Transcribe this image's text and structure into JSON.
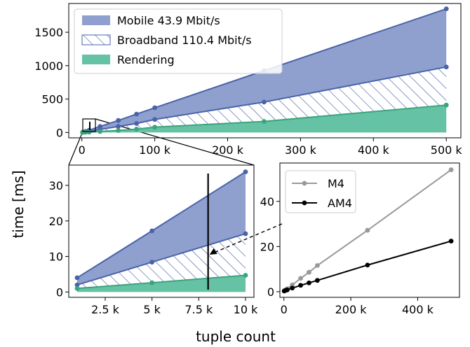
{
  "labels": {
    "ylabel": "time [ms]",
    "xlabel": "tuple count"
  },
  "colors": {
    "mobile": "#8fa0cf",
    "mobile_line": "#4a63a8",
    "broadband_hatch": "#4a63a8",
    "rendering": "#66c2a5",
    "rendering_line": "#3aa57a",
    "m4": "#999999",
    "am4": "#000000"
  },
  "chart_data": [
    {
      "type": "area",
      "panel": "main",
      "x": [
        1000,
        5000,
        10000,
        25000,
        50000,
        75000,
        100000,
        250000,
        500000
      ],
      "series": [
        {
          "name": "Mobile 43.9 Mbit/s",
          "style": "filled",
          "values": [
            4,
            17,
            34,
            90,
            180,
            275,
            370,
            925,
            1850
          ]
        },
        {
          "name": "Broadband 110.4 Mbit/s",
          "style": "hatched",
          "values": [
            2,
            8,
            16,
            45,
            90,
            135,
            195,
            455,
            980
          ]
        },
        {
          "name": "Rendering",
          "style": "filled",
          "values": [
            1,
            3,
            5,
            15,
            30,
            50,
            80,
            165,
            410
          ]
        }
      ],
      "xticks": [
        0,
        100000,
        200000,
        300000,
        400000,
        500000
      ],
      "xtick_labels": [
        "0",
        "100 k",
        "200 k",
        "300 k",
        "400 k",
        "500 k"
      ],
      "yticks": [
        0,
        500,
        1000,
        1500
      ],
      "ytick_labels": [
        "0",
        "500",
        "1000",
        "1500"
      ],
      "xlim": [
        -18000,
        520000
      ],
      "ylim": [
        -80,
        1930
      ],
      "legend_position": "top-left"
    },
    {
      "type": "area",
      "panel": "zoom-inset",
      "x": [
        1000,
        5000,
        10000
      ],
      "series": [
        {
          "name": "Mobile 43.9 Mbit/s",
          "values": [
            4,
            17.2,
            33.8
          ]
        },
        {
          "name": "Broadband 110.4 Mbit/s",
          "values": [
            2,
            8.4,
            16.4
          ]
        },
        {
          "name": "Rendering",
          "values": [
            1,
            2.6,
            4.7
          ]
        }
      ],
      "marker_x": 8000,
      "xticks": [
        2500,
        5000,
        7500,
        10000
      ],
      "xtick_labels": [
        "2.5 k",
        "5 k",
        "7.5 k",
        "10 k"
      ],
      "yticks": [
        0,
        10,
        20,
        30
      ],
      "ytick_labels": [
        "0",
        "10",
        "20",
        "30"
      ],
      "xlim": [
        550,
        10450
      ],
      "ylim": [
        -1.5,
        35.7
      ]
    },
    {
      "type": "line",
      "panel": "inset-right",
      "x": [
        1000,
        5000,
        10000,
        25000,
        50000,
        75000,
        100000,
        250000,
        500000
      ],
      "series": [
        {
          "name": "M4",
          "values": [
            0.4,
            0.8,
            1.3,
            3,
            5.9,
            8.6,
            11.6,
            27.2,
            54
          ]
        },
        {
          "name": "AM4",
          "values": [
            0.3,
            0.6,
            0.8,
            1.6,
            2.8,
            3.9,
            5,
            11.8,
            22.4
          ]
        }
      ],
      "xticks": [
        0,
        200000,
        400000
      ],
      "xtick_labels": [
        "0",
        "200 k",
        "400 k"
      ],
      "yticks": [
        0,
        20,
        40
      ],
      "ytick_labels": [
        "0",
        "20",
        "40"
      ],
      "xlim": [
        -12000,
        525000
      ],
      "ylim": [
        -2.5,
        57
      ],
      "legend_position": "top-left"
    }
  ]
}
